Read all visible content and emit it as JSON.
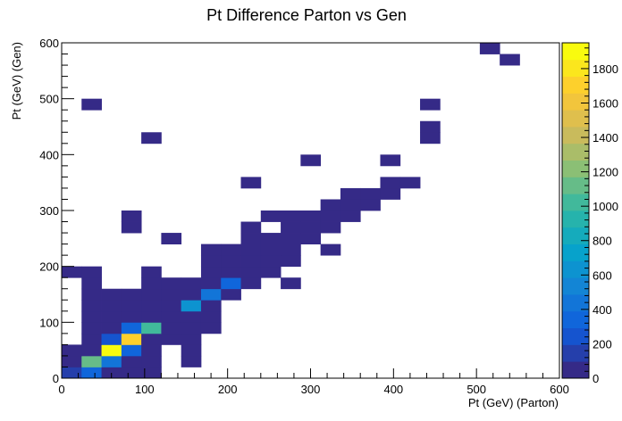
{
  "chart_data": {
    "type": "heatmap",
    "title": "Pt Difference Parton vs Gen",
    "xlabel": "Pt (GeV) (Parton)",
    "ylabel": "Pt (GeV) (Gen)",
    "xlim": [
      0,
      600
    ],
    "ylim": [
      0,
      600
    ],
    "bin_width": 24,
    "bin_height": 20,
    "zlim": [
      0,
      1950
    ],
    "x_ticks": [
      "0",
      "100",
      "200",
      "300",
      "400",
      "500",
      "600"
    ],
    "y_ticks": [
      "0",
      "100",
      "200",
      "300",
      "400",
      "500",
      "600"
    ],
    "z_ticks": [
      "0",
      "200",
      "400",
      "600",
      "800",
      "1000",
      "1200",
      "1400",
      "1600",
      "1800"
    ],
    "colormap": [
      "#352a87",
      "#0f5cdd",
      "#1481d6",
      "#06a4ca",
      "#2eb7a4",
      "#87bf77",
      "#d1bb59",
      "#fec832",
      "#f9fb0e"
    ],
    "cells": [
      {
        "x": 0,
        "y": 0,
        "z": 150
      },
      {
        "x": 24,
        "y": 0,
        "z": 300
      },
      {
        "x": 48,
        "y": 0,
        "z": 60
      },
      {
        "x": 72,
        "y": 0,
        "z": 50
      },
      {
        "x": 96,
        "y": 0,
        "z": 20
      },
      {
        "x": 0,
        "y": 20,
        "z": 40
      },
      {
        "x": 24,
        "y": 20,
        "z": 1100
      },
      {
        "x": 48,
        "y": 20,
        "z": 420
      },
      {
        "x": 72,
        "y": 20,
        "z": 60
      },
      {
        "x": 96,
        "y": 20,
        "z": 20
      },
      {
        "x": 144,
        "y": 20,
        "z": 10
      },
      {
        "x": 0,
        "y": 40,
        "z": 20
      },
      {
        "x": 24,
        "y": 40,
        "z": 50
      },
      {
        "x": 48,
        "y": 40,
        "z": 1950
      },
      {
        "x": 72,
        "y": 40,
        "z": 300
      },
      {
        "x": 96,
        "y": 40,
        "z": 40
      },
      {
        "x": 144,
        "y": 40,
        "z": 10
      },
      {
        "x": 24,
        "y": 60,
        "z": 30
      },
      {
        "x": 48,
        "y": 60,
        "z": 250
      },
      {
        "x": 72,
        "y": 60,
        "z": 1700
      },
      {
        "x": 96,
        "y": 60,
        "z": 50
      },
      {
        "x": 120,
        "y": 60,
        "z": 20
      },
      {
        "x": 144,
        "y": 60,
        "z": 10
      },
      {
        "x": 24,
        "y": 80,
        "z": 20
      },
      {
        "x": 48,
        "y": 80,
        "z": 50
      },
      {
        "x": 72,
        "y": 80,
        "z": 300
      },
      {
        "x": 96,
        "y": 80,
        "z": 1000
      },
      {
        "x": 120,
        "y": 80,
        "z": 60
      },
      {
        "x": 144,
        "y": 80,
        "z": 30
      },
      {
        "x": 168,
        "y": 80,
        "z": 10
      },
      {
        "x": 24,
        "y": 100,
        "z": 10
      },
      {
        "x": 48,
        "y": 100,
        "z": 20
      },
      {
        "x": 72,
        "y": 100,
        "z": 40
      },
      {
        "x": 96,
        "y": 100,
        "z": 60
      },
      {
        "x": 120,
        "y": 100,
        "z": 80
      },
      {
        "x": 144,
        "y": 100,
        "z": 60
      },
      {
        "x": 168,
        "y": 100,
        "z": 20
      },
      {
        "x": 24,
        "y": 120,
        "z": 10
      },
      {
        "x": 48,
        "y": 120,
        "z": 20
      },
      {
        "x": 72,
        "y": 120,
        "z": 30
      },
      {
        "x": 96,
        "y": 120,
        "z": 40
      },
      {
        "x": 120,
        "y": 120,
        "z": 60
      },
      {
        "x": 144,
        "y": 120,
        "z": 650
      },
      {
        "x": 168,
        "y": 120,
        "z": 40
      },
      {
        "x": 24,
        "y": 140,
        "z": 10
      },
      {
        "x": 48,
        "y": 140,
        "z": 20
      },
      {
        "x": 72,
        "y": 140,
        "z": 20
      },
      {
        "x": 96,
        "y": 140,
        "z": 30
      },
      {
        "x": 120,
        "y": 140,
        "z": 40
      },
      {
        "x": 144,
        "y": 140,
        "z": 80
      },
      {
        "x": 168,
        "y": 140,
        "z": 450
      },
      {
        "x": 192,
        "y": 140,
        "z": 30
      },
      {
        "x": 24,
        "y": 160,
        "z": 10
      },
      {
        "x": 96,
        "y": 160,
        "z": 10
      },
      {
        "x": 120,
        "y": 160,
        "z": 20
      },
      {
        "x": 144,
        "y": 160,
        "z": 30
      },
      {
        "x": 168,
        "y": 160,
        "z": 40
      },
      {
        "x": 192,
        "y": 160,
        "z": 300
      },
      {
        "x": 216,
        "y": 160,
        "z": 20
      },
      {
        "x": 264,
        "y": 160,
        "z": 10
      },
      {
        "x": 0,
        "y": 180,
        "z": 10
      },
      {
        "x": 24,
        "y": 180,
        "z": 10
      },
      {
        "x": 96,
        "y": 180,
        "z": 10
      },
      {
        "x": 168,
        "y": 180,
        "z": 20
      },
      {
        "x": 192,
        "y": 180,
        "z": 30
      },
      {
        "x": 216,
        "y": 180,
        "z": 40
      },
      {
        "x": 240,
        "y": 180,
        "z": 20
      },
      {
        "x": 168,
        "y": 200,
        "z": 10
      },
      {
        "x": 192,
        "y": 200,
        "z": 20
      },
      {
        "x": 216,
        "y": 200,
        "z": 30
      },
      {
        "x": 240,
        "y": 200,
        "z": 30
      },
      {
        "x": 264,
        "y": 200,
        "z": 20
      },
      {
        "x": 168,
        "y": 220,
        "z": 10
      },
      {
        "x": 192,
        "y": 220,
        "z": 10
      },
      {
        "x": 216,
        "y": 220,
        "z": 20
      },
      {
        "x": 240,
        "y": 220,
        "z": 20
      },
      {
        "x": 264,
        "y": 220,
        "z": 20
      },
      {
        "x": 312,
        "y": 220,
        "z": 10
      },
      {
        "x": 120,
        "y": 240,
        "z": 10
      },
      {
        "x": 216,
        "y": 240,
        "z": 10
      },
      {
        "x": 240,
        "y": 240,
        "z": 20
      },
      {
        "x": 264,
        "y": 240,
        "z": 20
      },
      {
        "x": 288,
        "y": 240,
        "z": 10
      },
      {
        "x": 72,
        "y": 260,
        "z": 10
      },
      {
        "x": 216,
        "y": 260,
        "z": 10
      },
      {
        "x": 264,
        "y": 260,
        "z": 10
      },
      {
        "x": 288,
        "y": 260,
        "z": 20
      },
      {
        "x": 312,
        "y": 260,
        "z": 10
      },
      {
        "x": 72,
        "y": 280,
        "z": 10
      },
      {
        "x": 240,
        "y": 280,
        "z": 10
      },
      {
        "x": 264,
        "y": 280,
        "z": 20
      },
      {
        "x": 288,
        "y": 280,
        "z": 20
      },
      {
        "x": 312,
        "y": 280,
        "z": 10
      },
      {
        "x": 336,
        "y": 280,
        "z": 10
      },
      {
        "x": 312,
        "y": 300,
        "z": 10
      },
      {
        "x": 336,
        "y": 300,
        "z": 10
      },
      {
        "x": 360,
        "y": 300,
        "z": 10
      },
      {
        "x": 336,
        "y": 320,
        "z": 10
      },
      {
        "x": 360,
        "y": 320,
        "z": 10
      },
      {
        "x": 384,
        "y": 320,
        "z": 10
      },
      {
        "x": 216,
        "y": 340,
        "z": 10
      },
      {
        "x": 384,
        "y": 340,
        "z": 10
      },
      {
        "x": 408,
        "y": 340,
        "z": 10
      },
      {
        "x": 288,
        "y": 380,
        "z": 10
      },
      {
        "x": 384,
        "y": 380,
        "z": 10
      },
      {
        "x": 96,
        "y": 420,
        "z": 10
      },
      {
        "x": 432,
        "y": 420,
        "z": 10
      },
      {
        "x": 432,
        "y": 440,
        "z": 10
      },
      {
        "x": 24,
        "y": 480,
        "z": 10
      },
      {
        "x": 432,
        "y": 480,
        "z": 10
      },
      {
        "x": 528,
        "y": 560,
        "z": 10
      },
      {
        "x": 504,
        "y": 580,
        "z": 10
      }
    ]
  }
}
